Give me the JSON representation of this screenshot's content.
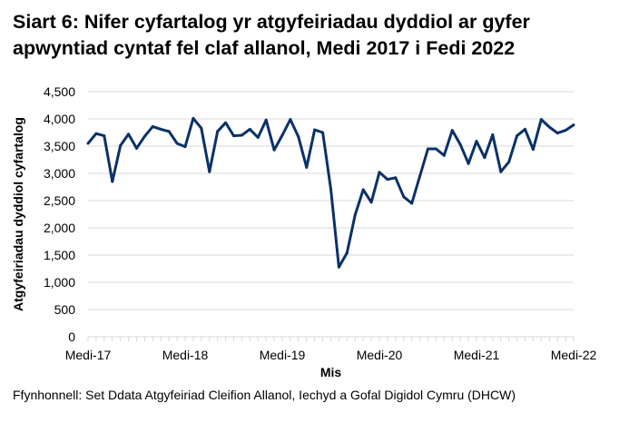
{
  "chart_data": {
    "type": "line",
    "title": "Siart 6: Nifer cyfartalog yr atgyfeiriadau dyddiol ar gyfer apwyntiad cyntaf fel claf allanol, Medi 2017 i Fedi 2022",
    "xlabel": "Mis",
    "ylabel": "Atgyfeiriadau dyddiol cyfartalog",
    "ylim": [
      0,
      4500
    ],
    "yticks": [
      "0",
      "500",
      "1,000",
      "1,500",
      "2,000",
      "2,500",
      "3,000",
      "3,500",
      "4,000",
      "4,500"
    ],
    "xtick_labels": [
      {
        "index": 0,
        "label": "Medi-17"
      },
      {
        "index": 12,
        "label": "Medi-18"
      },
      {
        "index": 24,
        "label": "Medi-19"
      },
      {
        "index": 36,
        "label": "Medi-20"
      },
      {
        "index": 48,
        "label": "Medi-21"
      },
      {
        "index": 60,
        "label": "Medi-22"
      }
    ],
    "x_start": "Medi 2017",
    "x_end": "Medi 2022",
    "grid": "horizontal",
    "line_color": "#0b3168",
    "values": [
      3550,
      3730,
      3690,
      2850,
      3510,
      3720,
      3460,
      3680,
      3860,
      3810,
      3770,
      3550,
      3490,
      4010,
      3830,
      3030,
      3770,
      3930,
      3690,
      3700,
      3810,
      3660,
      3980,
      3430,
      3700,
      3990,
      3670,
      3110,
      3800,
      3750,
      2710,
      1280,
      1540,
      2240,
      2700,
      2470,
      3020,
      2890,
      2920,
      2570,
      2450,
      2950,
      3450,
      3450,
      3330,
      3790,
      3530,
      3180,
      3590,
      3290,
      3710,
      3030,
      3210,
      3690,
      3810,
      3440,
      3990,
      3850,
      3740,
      3790,
      3890
    ]
  },
  "source": "Ffynhonnell: Set Ddata Atgyfeiriad Cleifion Allanol, Iechyd a Gofal Digidol Cymru (DHCW)"
}
